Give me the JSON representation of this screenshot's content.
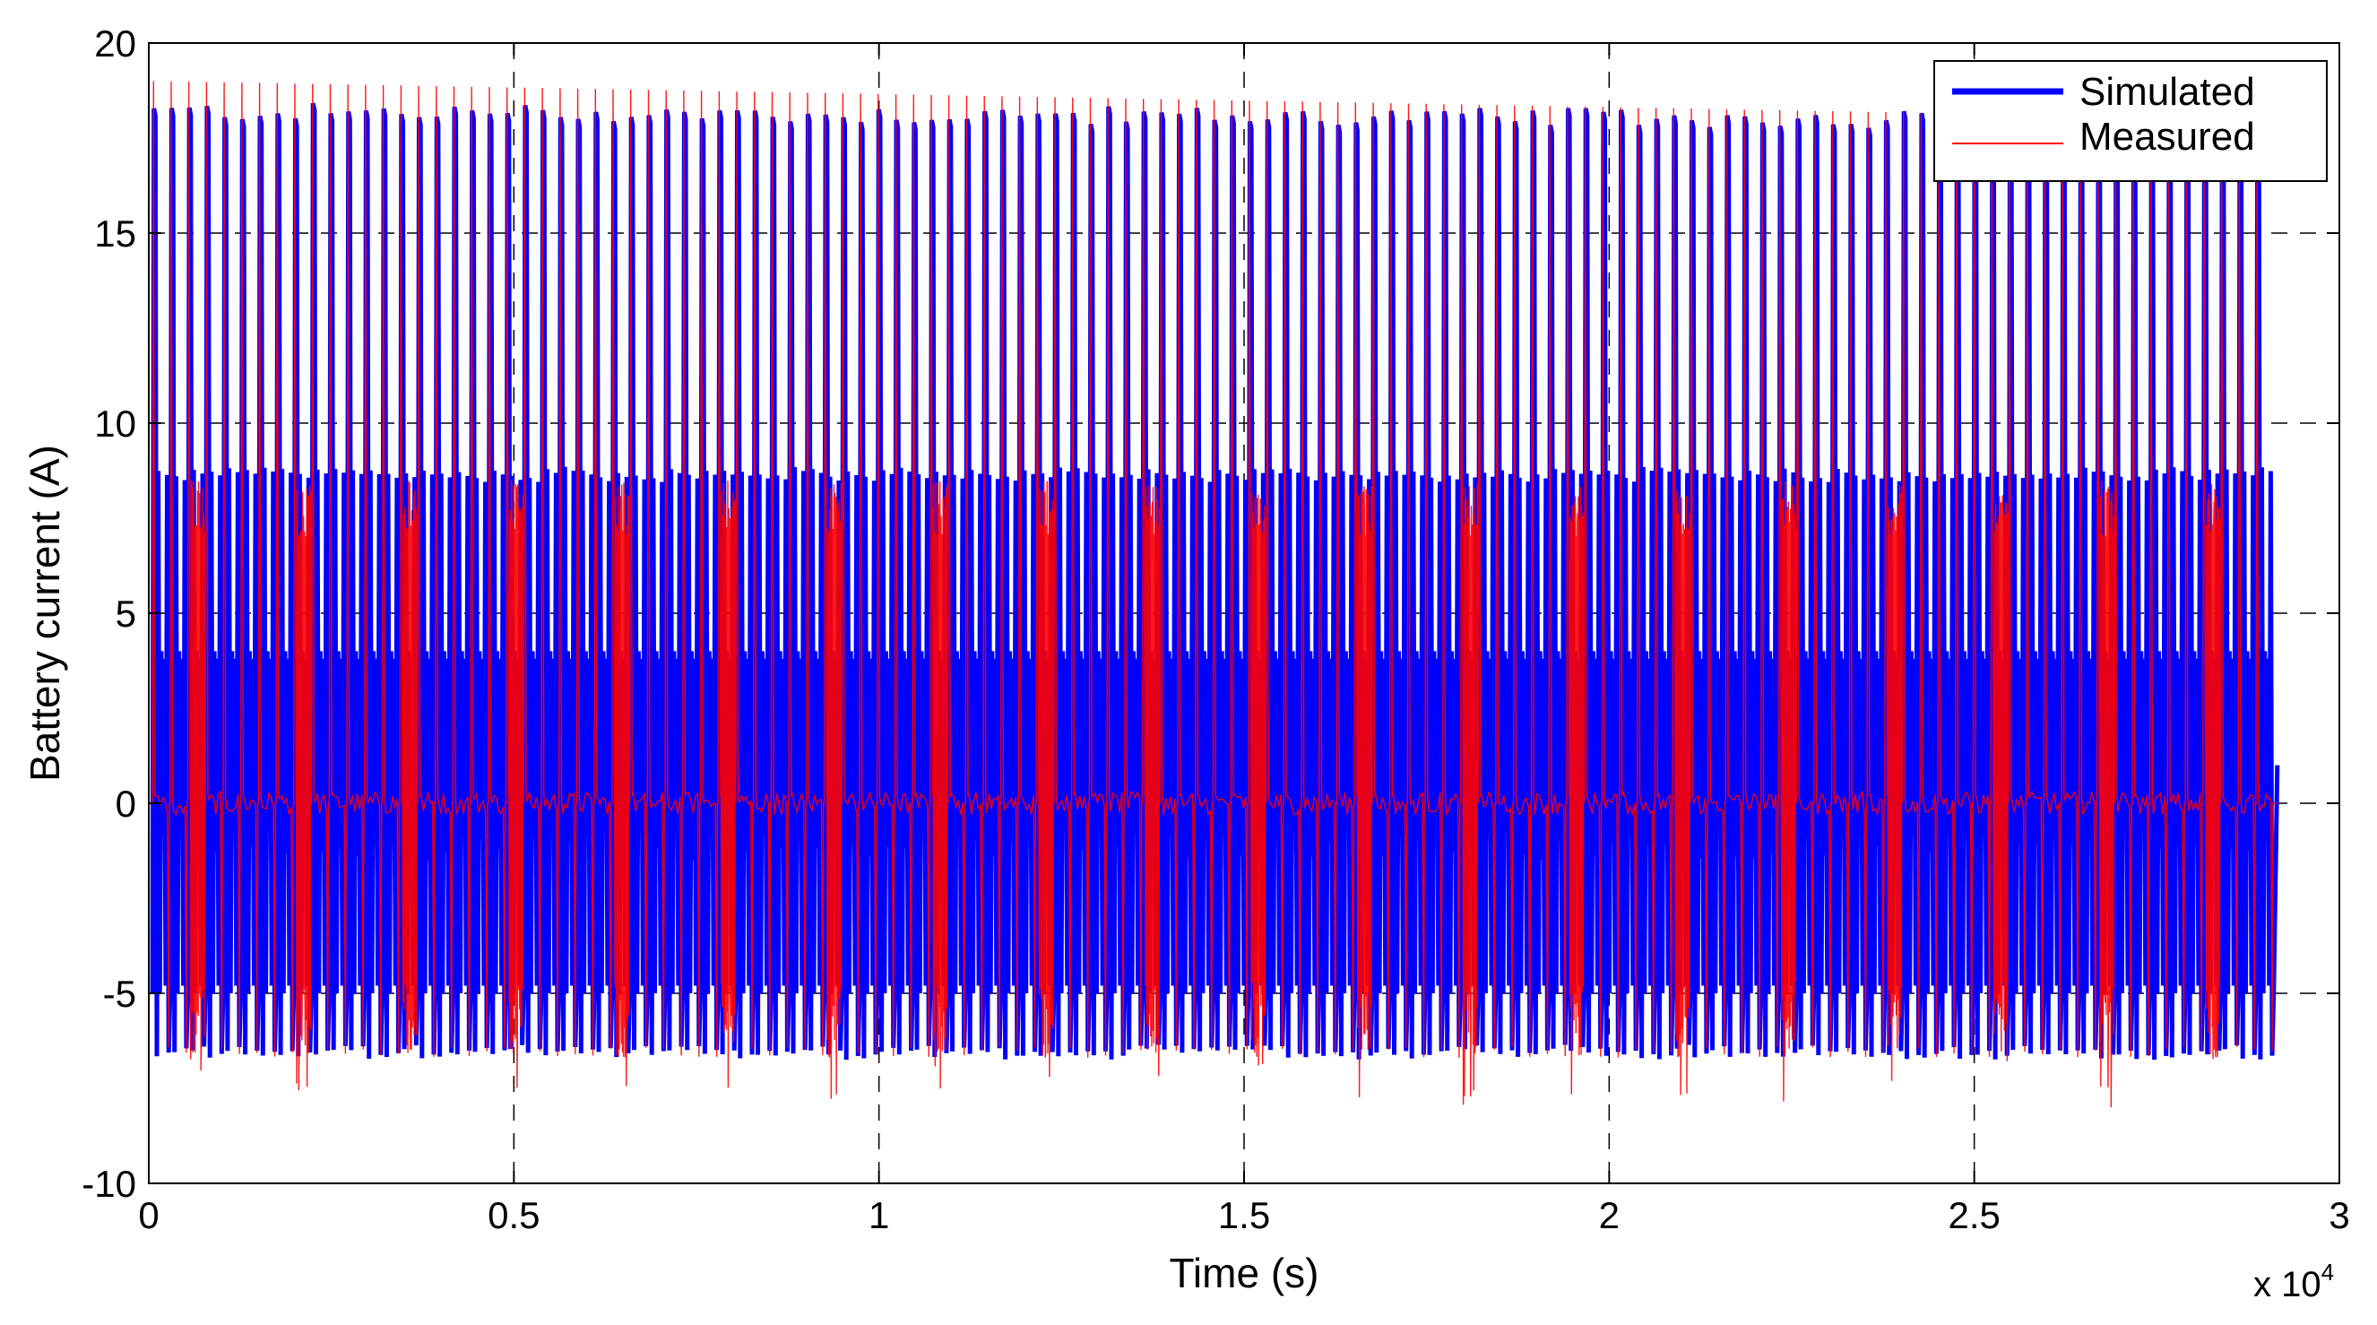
{
  "chart_data": {
    "type": "line",
    "title": "",
    "xlabel": "Time (s)",
    "ylabel": "Battery current (A)",
    "x_multiplier_label": "x 10",
    "x_multiplier_exponent": "4",
    "xlim": [
      0,
      3
    ],
    "ylim": [
      -10,
      20
    ],
    "x_ticks": [
      0,
      0.5,
      1,
      1.5,
      2,
      2.5,
      3
    ],
    "x_tick_labels": [
      "0",
      "0.5",
      "1",
      "1.5",
      "2",
      "2.5",
      "3"
    ],
    "y_ticks": [
      -10,
      -5,
      0,
      5,
      10,
      15,
      20
    ],
    "y_tick_labels": [
      "-10",
      "-5",
      "0",
      "5",
      "10",
      "15",
      "20"
    ],
    "grid": "dashed",
    "legend": {
      "position": "top-right",
      "entries": [
        "Simulated",
        "Measured"
      ]
    },
    "series": [
      {
        "name": "Simulated",
        "color": "#0000ff",
        "line_style": "thick",
        "x_end": 2.91,
        "pulse_peak": 18.2,
        "pulse_trough": -6.6,
        "secondary_high": 8.7,
        "secondary_mid": 4.0,
        "secondary_low": -5.0,
        "cycles": 120
      },
      {
        "name": "Measured",
        "color": "#ff0000",
        "line_style": "thin",
        "x_end": 2.91,
        "pulse_peak_start": 19.0,
        "pulse_peak_end": 18.0,
        "pulse_trough": -6.7,
        "baseline": 0,
        "cycles": 120
      }
    ]
  }
}
